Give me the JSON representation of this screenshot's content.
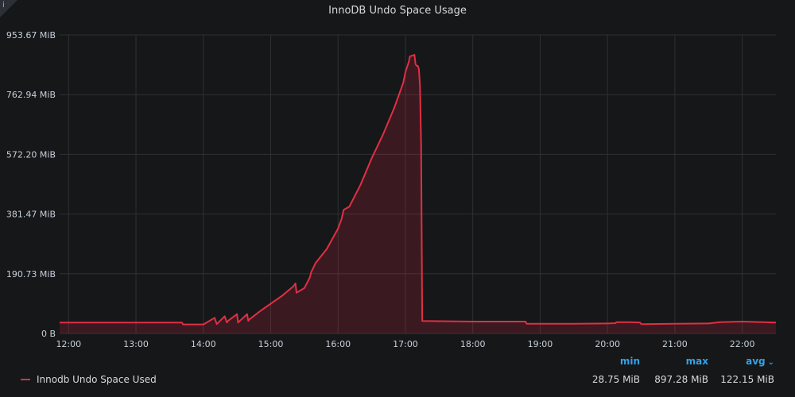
{
  "panel": {
    "title": "InnoDB Undo Space Usage",
    "info_icon": "i"
  },
  "legend": {
    "series_name": "Innodb Undo Space Used",
    "headers": {
      "min": "min",
      "max": "max",
      "avg": "avg"
    },
    "sort_icon": "chevron-down-icon",
    "values": {
      "min": "28.75 MiB",
      "max": "897.28 MiB",
      "avg": "122.15 MiB"
    }
  },
  "colors": {
    "background": "#161719",
    "series": "#e02f44",
    "grid": "#2c3235",
    "accent": "#33a2e5"
  },
  "chart_data": {
    "type": "area",
    "title": "InnoDB Undo Space Usage",
    "xlabel": "",
    "ylabel": "",
    "grid": true,
    "legend_position": "bottom",
    "y_unit": "MiB",
    "ylim": [
      0,
      953.67
    ],
    "y_ticks": [
      0,
      190.73,
      381.47,
      572.2,
      762.94,
      953.67
    ],
    "y_tick_labels": [
      "0 B",
      "190.73 MiB",
      "381.47 MiB",
      "572.20 MiB",
      "762.94 MiB",
      "953.67 MiB"
    ],
    "x_unit": "time of day",
    "xlim": [
      "11:52",
      "22:30"
    ],
    "x_ticks": [
      "12:00",
      "13:00",
      "14:00",
      "15:00",
      "16:00",
      "17:00",
      "18:00",
      "19:00",
      "20:00",
      "21:00",
      "22:00"
    ],
    "series": [
      {
        "name": "Innodb Undo Space Used",
        "x": [
          "11:52",
          "13:00",
          "13:41",
          "13:42",
          "14:00",
          "14:10",
          "14:12",
          "14:19",
          "14:21",
          "14:22",
          "14:30",
          "14:31",
          "14:39",
          "14:40",
          "14:41",
          "14:50",
          "14:52",
          "15:00",
          "15:10",
          "15:20",
          "15:22",
          "15:23",
          "15:30",
          "15:35",
          "15:36",
          "15:40",
          "15:50",
          "16:00",
          "16:03",
          "16:05",
          "16:10",
          "16:20",
          "16:30",
          "16:40",
          "16:50",
          "16:58",
          "17:00",
          "17:03",
          "17:04",
          "17:08",
          "17:09",
          "17:10",
          "17:11",
          "17:12",
          "17:13",
          "17:14",
          "17:15",
          "18:00",
          "18:47",
          "18:48",
          "19:30",
          "20:00",
          "20:07",
          "20:08",
          "20:20",
          "20:29",
          "20:30",
          "21:00",
          "21:30",
          "21:40",
          "22:00",
          "22:30"
        ],
        "values": [
          35,
          35,
          35,
          29,
          29,
          50,
          30,
          55,
          35,
          40,
          62,
          35,
          62,
          40,
          45,
          70,
          75,
          95,
          120,
          150,
          160,
          130,
          145,
          180,
          195,
          225,
          270,
          335,
          365,
          395,
          405,
          475,
          560,
          635,
          720,
          800,
          835,
          868,
          885,
          890,
          860,
          855,
          855,
          845,
          790,
          600,
          40,
          38,
          38,
          31,
          31,
          32,
          33,
          36,
          36,
          35,
          30,
          31,
          32,
          36,
          38,
          35
        ]
      }
    ]
  }
}
